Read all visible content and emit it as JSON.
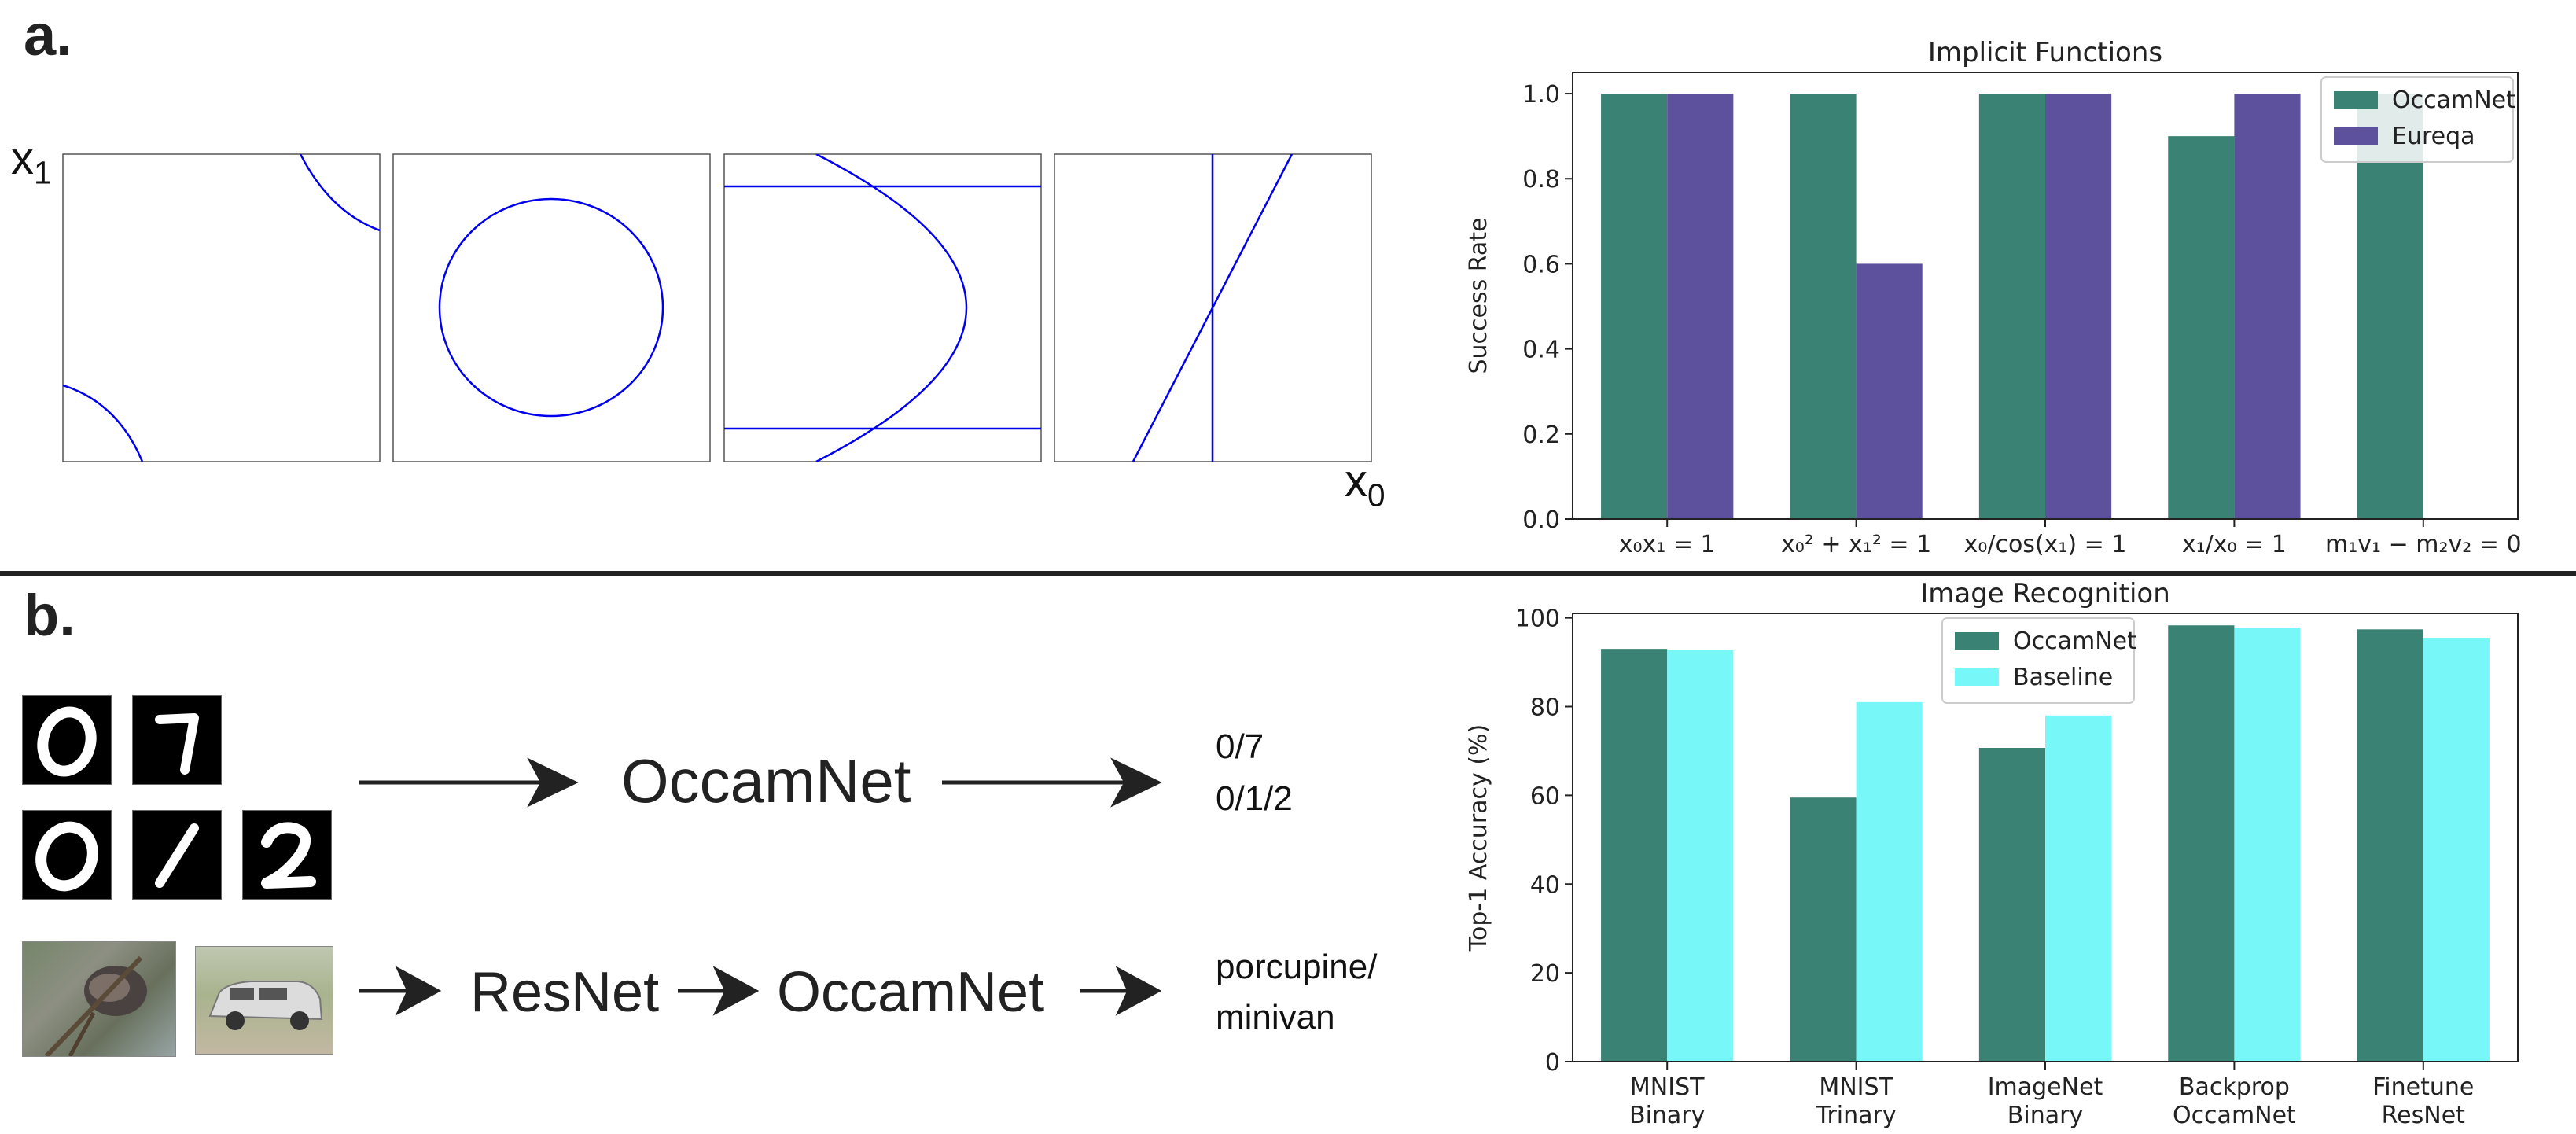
{
  "panel_a": {
    "label": "a.",
    "axis_y_var": "x",
    "axis_y_sub": "1",
    "axis_x_var": "x",
    "axis_x_sub": "0",
    "curve_color": "#0000ee"
  },
  "panel_b": {
    "label": "b.",
    "mnist_flow": [
      "OccamNet"
    ],
    "mnist_outputs": [
      "0/7",
      "0/1/2"
    ],
    "imagenet_flow": [
      "ResNet",
      "OccamNet"
    ],
    "imagenet_outputs": [
      "porcupine/",
      "minivan"
    ],
    "mnist_digits_row1": [
      "0",
      "7"
    ],
    "mnist_digits_row2": [
      "0",
      "1",
      "2"
    ]
  },
  "colors": {
    "occamnet": "#3a8273",
    "eureqa": "#5d509c",
    "baseline": "#77f7f8"
  },
  "chart_data": [
    {
      "type": "bar",
      "title": "Implicit Functions",
      "xlabel": "",
      "ylabel": "Success Rate",
      "ylim": [
        0,
        1.05
      ],
      "yticks": [
        "0.0",
        "0.2",
        "0.4",
        "0.6",
        "0.8",
        "1.0"
      ],
      "ytick_values": [
        0,
        0.2,
        0.4,
        0.6,
        0.8,
        1.0
      ],
      "categories": [
        [
          "x₀x₁ = 1"
        ],
        [
          "x₀² + x₁² = 1"
        ],
        [
          "x₀/cos(x₁) = 1"
        ],
        [
          "x₁/x₀ = 1"
        ],
        [
          "m₁v₁ − m₂v₂ = 0"
        ]
      ],
      "legend_position": "top-right",
      "series": [
        {
          "name": "OccamNet",
          "color": "#3a8273",
          "values": [
            1.0,
            1.0,
            1.0,
            0.9,
            1.0
          ]
        },
        {
          "name": "Eureqa",
          "color": "#5d509c",
          "values": [
            1.0,
            0.6,
            1.0,
            1.0,
            0.0
          ]
        }
      ]
    },
    {
      "type": "bar",
      "title": "Image Recognition",
      "xlabel": "",
      "ylabel": "Top-1 Accuracy (%)",
      "ylim": [
        0,
        101
      ],
      "yticks": [
        "0",
        "20",
        "40",
        "60",
        "80",
        "100"
      ],
      "ytick_values": [
        0,
        20,
        40,
        60,
        80,
        100
      ],
      "categories": [
        [
          "MNIST",
          "Binary"
        ],
        [
          "MNIST",
          "Trinary"
        ],
        [
          "ImageNet",
          "Binary"
        ],
        [
          "Backprop",
          "OccamNet"
        ],
        [
          "Finetune",
          "ResNet"
        ]
      ],
      "legend_position": "top-center",
      "series": [
        {
          "name": "OccamNet",
          "color": "#3a8273",
          "values": [
            93,
            59.5,
            70.7,
            98.3,
            97.4
          ]
        },
        {
          "name": "Baseline",
          "color": "#77f7f8",
          "values": [
            92.7,
            81,
            78,
            97.8,
            95.5
          ]
        }
      ]
    }
  ]
}
